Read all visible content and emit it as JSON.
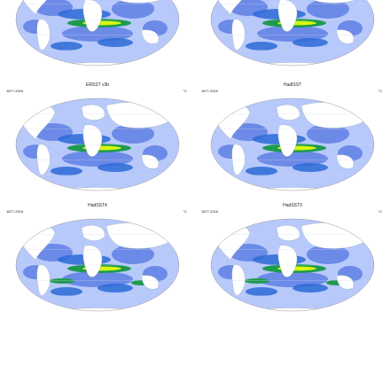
{
  "colors": {
    "ocean_base": "#b7c8fb",
    "anomaly_low": "#5f7fe3",
    "anomaly_mid": "#2d6ad6",
    "anomaly_high": "#1e9a4f",
    "anomaly_peak": "#d7f70f",
    "land": "#ffffff"
  },
  "panels": [
    {
      "title": "",
      "left_label": "",
      "right_label": ""
    },
    {
      "title": "",
      "left_label": "",
      "right_label": ""
    },
    {
      "title": "ERSST v3b",
      "left_label": "1877-2016",
      "right_label": "°C"
    },
    {
      "title": "HadISST",
      "left_label": "1877-2016",
      "right_label": "°C"
    },
    {
      "title": "HadSST4",
      "left_label": "1877-2016",
      "right_label": "°C"
    },
    {
      "title": "HadSST3",
      "left_label": "1877-2016",
      "right_label": "°C"
    }
  ]
}
